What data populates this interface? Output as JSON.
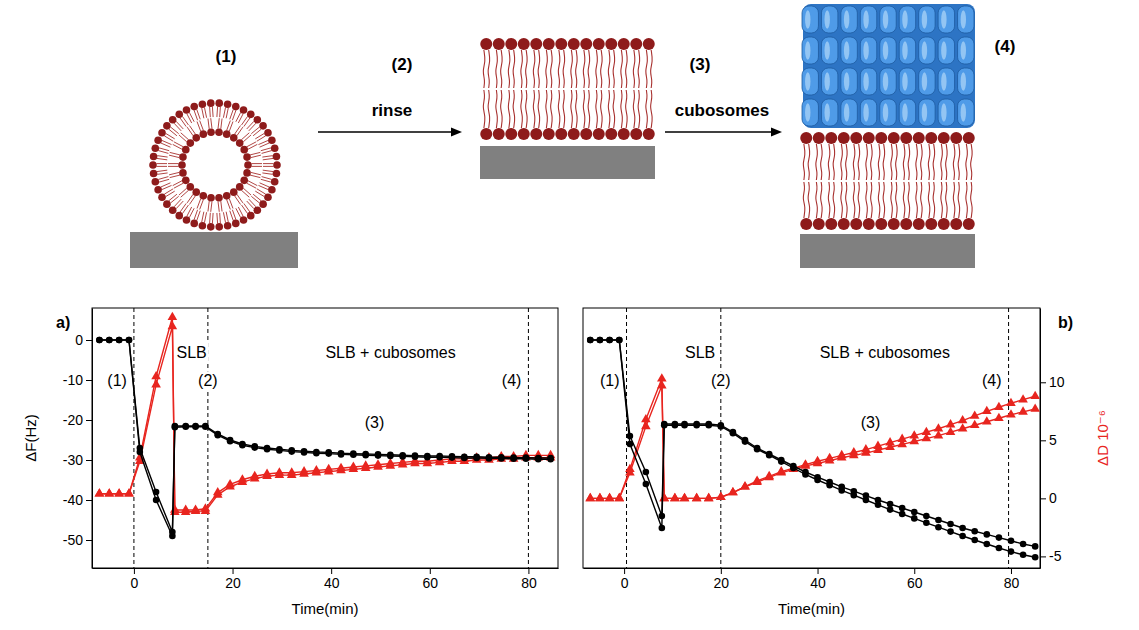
{
  "diagram": {
    "steps": [
      "(1)",
      "(2)",
      "(3)",
      "(4)"
    ],
    "actions": [
      "rinse",
      "cubosomes"
    ]
  },
  "chart_data": [
    {
      "type": "line",
      "panel_label": "a)",
      "x_label": "Time(min)",
      "y_label": "ΔF(Hz)",
      "xlim": [
        -8.5,
        86
      ],
      "xticks": [
        0,
        20,
        40,
        60,
        80
      ],
      "ylim": [
        -57,
        8
      ],
      "yticks": [
        0,
        -10,
        -20,
        -30,
        -40,
        -50
      ],
      "y2lim": [
        -6,
        16.4
      ],
      "x": [
        -7,
        -5,
        -3,
        -1,
        1.2,
        4.5,
        7.8,
        8.3,
        10.5,
        12.5,
        14.5,
        17,
        19.5,
        22,
        24.5,
        27,
        29.5,
        32,
        34.5,
        37,
        39.5,
        42,
        44.5,
        47,
        49.5,
        52,
        54.5,
        57,
        59.5,
        62,
        64.5,
        67,
        69.5,
        72,
        74.5,
        77,
        79.5,
        82,
        84.5
      ],
      "series": [
        {
          "color": "#e8251f",
          "marker": "triangle",
          "line_style": "solid",
          "axis": "y2",
          "values": [
            0.4,
            0.4,
            0.4,
            0.4,
            3.5,
            10.5,
            15.6,
            -1.2,
            -1.2,
            -1.1,
            -1.1,
            0.3,
            1.0,
            1.4,
            1.7,
            1.9,
            2.0,
            2.0,
            2.1,
            2.2,
            2.3,
            2.4,
            2.5,
            2.6,
            2.7,
            2.8,
            2.9,
            3.0,
            3.0,
            3.1,
            3.2,
            3.2,
            3.3,
            3.3,
            3.4,
            3.4,
            3.5,
            3.5,
            3.5
          ]
        },
        {
          "color": "#e8251f",
          "marker": "triangle",
          "line_style": "solid",
          "axis": "y2",
          "values": [
            0.4,
            0.4,
            0.4,
            0.4,
            3.2,
            9.8,
            14.8,
            -1.0,
            -1.0,
            -1.0,
            -0.9,
            0.5,
            1.2,
            1.6,
            1.9,
            2.1,
            2.2,
            2.2,
            2.3,
            2.4,
            2.5,
            2.6,
            2.7,
            2.8,
            2.9,
            3.0,
            3.1,
            3.2,
            3.2,
            3.3,
            3.4,
            3.4,
            3.5,
            3.5,
            3.6,
            3.6,
            3.7,
            3.7,
            3.7
          ]
        },
        {
          "color": "#000000",
          "marker": "circle",
          "line_style": "solid",
          "axis": "y",
          "values": [
            0,
            0,
            0,
            0,
            -27,
            -38,
            -48,
            -21.5,
            -21.5,
            -21.5,
            -21.5,
            -23.5,
            -25,
            -26,
            -26.6,
            -27,
            -27.3,
            -27.6,
            -27.8,
            -28,
            -28.1,
            -28.3,
            -28.4,
            -28.5,
            -28.6,
            -28.7,
            -28.8,
            -28.9,
            -29,
            -29,
            -29.1,
            -29.2,
            -29.2,
            -29.3,
            -29.3,
            -29.4,
            -29.4,
            -29.5,
            -29.5
          ]
        },
        {
          "color": "#000000",
          "marker": "circle",
          "line_style": "solid",
          "axis": "y",
          "values": [
            0,
            0,
            0,
            0,
            -28,
            -40,
            -49,
            -21.8,
            -21.7,
            -21.7,
            -21.7,
            -23.8,
            -25.3,
            -26.3,
            -26.9,
            -27.3,
            -27.6,
            -27.9,
            -28.1,
            -28.3,
            -28.4,
            -28.6,
            -28.7,
            -28.8,
            -28.9,
            -29,
            -29.1,
            -29.2,
            -29.3,
            -29.3,
            -29.4,
            -29.5,
            -29.5,
            -29.6,
            -29.6,
            -29.7,
            -29.7,
            -29.8,
            -29.8
          ]
        }
      ],
      "vlines": [
        {
          "x": 0,
          "label": "(1)"
        },
        {
          "x": 15,
          "label": "(2)"
        },
        {
          "x": 80,
          "label": "(4)"
        }
      ],
      "annotations": [
        "SLB",
        "SLB + cubosomes",
        "(3)"
      ]
    },
    {
      "type": "line",
      "panel_label": "b)",
      "x_label": "Time(min)",
      "y2_label": "ΔD 10⁻⁶",
      "xlim": [
        -8.5,
        86
      ],
      "xticks": [
        0,
        20,
        40,
        60,
        80
      ],
      "ylim": [
        -57,
        8
      ],
      "y2lim": [
        -6,
        16.4
      ],
      "y2ticks": [
        -5,
        0,
        5,
        10
      ],
      "x": [
        -7,
        -5,
        -3,
        -1,
        1.2,
        4.5,
        7.8,
        8.3,
        10.5,
        12.5,
        15,
        17.5,
        20,
        22.5,
        25,
        27.5,
        30,
        32.5,
        35,
        37.5,
        40,
        42.5,
        45,
        47.5,
        50,
        52.5,
        55,
        57.5,
        60,
        62.5,
        65,
        67.5,
        70,
        72.5,
        75,
        77.5,
        80,
        82.5,
        85
      ],
      "series": [
        {
          "color": "#e8251f",
          "marker": "triangle",
          "line_style": "solid",
          "axis": "y2",
          "values": [
            0,
            0,
            0,
            0,
            2.5,
            6.8,
            10.3,
            0,
            0,
            0,
            0,
            0,
            0.1,
            0.5,
            1.0,
            1.5,
            1.9,
            2.3,
            2.6,
            2.9,
            3.2,
            3.45,
            3.7,
            3.95,
            4.2,
            4.5,
            4.8,
            5.1,
            5.4,
            5.7,
            6.0,
            6.35,
            6.7,
            7.1,
            7.5,
            7.85,
            8.2,
            8.5,
            8.8
          ]
        },
        {
          "color": "#e8251f",
          "marker": "triangle",
          "line_style": "solid",
          "axis": "y2",
          "values": [
            0,
            0,
            0,
            0,
            2.2,
            6.2,
            9.7,
            0,
            0,
            0,
            0,
            0,
            0.1,
            0.5,
            1.0,
            1.4,
            1.8,
            2.2,
            2.5,
            2.8,
            3.0,
            3.25,
            3.5,
            3.7,
            3.9,
            4.15,
            4.4,
            4.65,
            4.9,
            5.15,
            5.4,
            5.7,
            6.0,
            6.3,
            6.6,
            6.9,
            7.2,
            7.45,
            7.7
          ]
        },
        {
          "color": "#000000",
          "marker": "circle",
          "line_style": "solid",
          "axis": "y",
          "values": [
            0,
            0,
            0,
            0,
            -24,
            -33,
            -44,
            -21,
            -21,
            -21,
            -21,
            -21,
            -21.3,
            -23,
            -25,
            -27,
            -28.5,
            -30,
            -31.5,
            -33,
            -34.3,
            -35.5,
            -36.7,
            -37.8,
            -38.9,
            -40,
            -41,
            -42,
            -43,
            -44,
            -45,
            -46,
            -47,
            -47.8,
            -48.6,
            -49.4,
            -50.2,
            -51,
            -51.6
          ]
        },
        {
          "color": "#000000",
          "marker": "circle",
          "line_style": "solid",
          "axis": "y",
          "values": [
            0,
            0,
            0,
            0,
            -26,
            -36,
            -47,
            -21.3,
            -21.3,
            -21.3,
            -21.3,
            -21.3,
            -21.6,
            -23.3,
            -25.4,
            -27.3,
            -28.8,
            -30.4,
            -32,
            -33.6,
            -35,
            -36.3,
            -37.6,
            -38.8,
            -40,
            -41.2,
            -42.4,
            -43.5,
            -44.6,
            -45.7,
            -46.8,
            -47.9,
            -49,
            -50,
            -51,
            -52,
            -52.9,
            -53.7,
            -54.3
          ]
        }
      ],
      "vlines": [
        {
          "x": 0.5,
          "label": "(1)"
        },
        {
          "x": 20,
          "label": "(2)"
        },
        {
          "x": 79.5,
          "label": "(4)"
        }
      ],
      "annotations": [
        "SLB",
        "SLB + cubosomes",
        "(3)"
      ]
    }
  ]
}
